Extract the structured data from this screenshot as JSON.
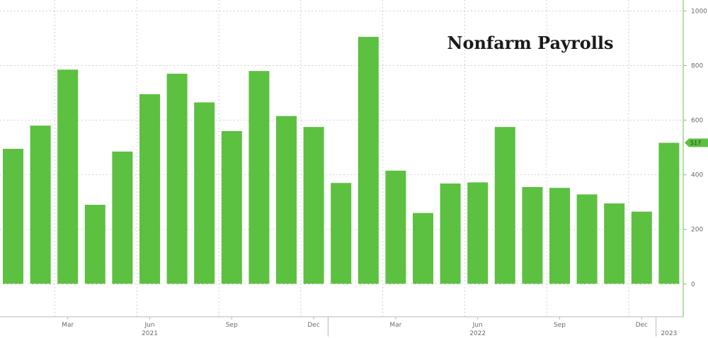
{
  "chart_data": {
    "type": "bar",
    "title": "Nonfarm Payrolls",
    "categories": [
      "2021-01",
      "2021-02",
      "2021-03",
      "2021-04",
      "2021-05",
      "2021-06",
      "2021-07",
      "2021-08",
      "2021-09",
      "2021-10",
      "2021-11",
      "2021-12",
      "2022-01",
      "2022-02",
      "2022-03",
      "2022-04",
      "2022-05",
      "2022-06",
      "2022-07",
      "2022-08",
      "2022-09",
      "2022-10",
      "2022-11",
      "2022-12",
      "2023-01"
    ],
    "values": [
      495,
      580,
      785,
      290,
      485,
      695,
      770,
      665,
      560,
      780,
      615,
      575,
      370,
      905,
      415,
      260,
      368,
      372,
      575,
      355,
      352,
      328,
      295,
      265,
      517
    ],
    "ylim": [
      -120,
      1040
    ],
    "yticks": [
      "0",
      "200",
      "400",
      "600",
      "800",
      "1000"
    ],
    "month_ticks": [
      {
        "label": "Mar",
        "index": 2
      },
      {
        "label": "Jun",
        "index": 5
      },
      {
        "label": "Sep",
        "index": 8
      },
      {
        "label": "Dec",
        "index": 11
      },
      {
        "label": "Mar",
        "index": 14
      },
      {
        "label": "Jun",
        "index": 17
      },
      {
        "label": "Sep",
        "index": 20
      },
      {
        "label": "Dec",
        "index": 23
      }
    ],
    "year_ticks": [
      {
        "label": "2021",
        "index": 5
      },
      {
        "label": "2022",
        "index": 17
      },
      {
        "label": "2023",
        "index": 24
      }
    ],
    "last_value_label": "517",
    "bar_color": "#5cc041",
    "badge_color": "#5cc041",
    "axis_color": "#84c86e",
    "grid": true,
    "grid_color": "#d2d2d2",
    "yaxis_position": "right"
  }
}
